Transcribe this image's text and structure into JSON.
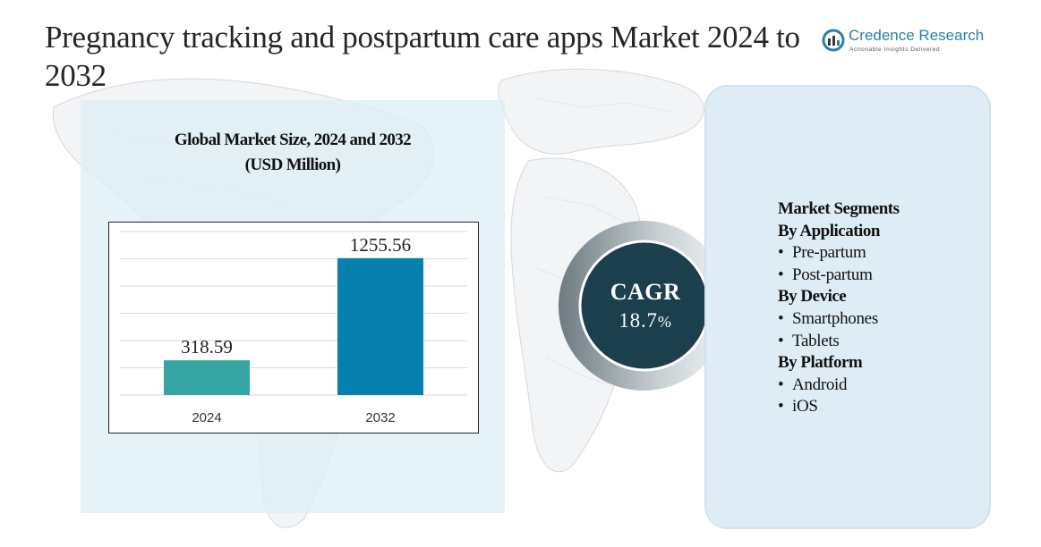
{
  "header": {
    "title": "Pregnancy tracking and postpartum care apps Market 2024 to 2032"
  },
  "logo": {
    "name": "Credence Research",
    "tagline": "Actionable Insights Delivered"
  },
  "chart_data": {
    "type": "bar",
    "title": "Global Market Size, 2024 and 2032",
    "subtitle": "(USD Million)",
    "categories": [
      "2024",
      "2032"
    ],
    "values": [
      318.59,
      1255.56
    ],
    "value_labels": [
      "318.59",
      "1255.56"
    ],
    "colors": [
      "#36a4a3",
      "#0780b0"
    ],
    "ylim": [
      0,
      1500
    ],
    "grid": true,
    "xlabel": "",
    "ylabel": ""
  },
  "cagr": {
    "label": "CAGR",
    "value": "18.7",
    "unit": "%"
  },
  "segments": {
    "title": "Market Segments",
    "groups": [
      {
        "heading": "By Application",
        "items": [
          "Pre-partum",
          "Post-partum"
        ]
      },
      {
        "heading": "By Device",
        "items": [
          "Smartphones",
          "Tablets"
        ]
      },
      {
        "heading": "By Platform",
        "items": [
          "Android",
          "iOS"
        ]
      }
    ],
    "bullet": "•"
  },
  "colors": {
    "circle": "#1c3f4e",
    "circle_ring": "#7f8b90",
    "panel_bg": "#deedf5",
    "logo_accent": "#2a7fa8"
  }
}
